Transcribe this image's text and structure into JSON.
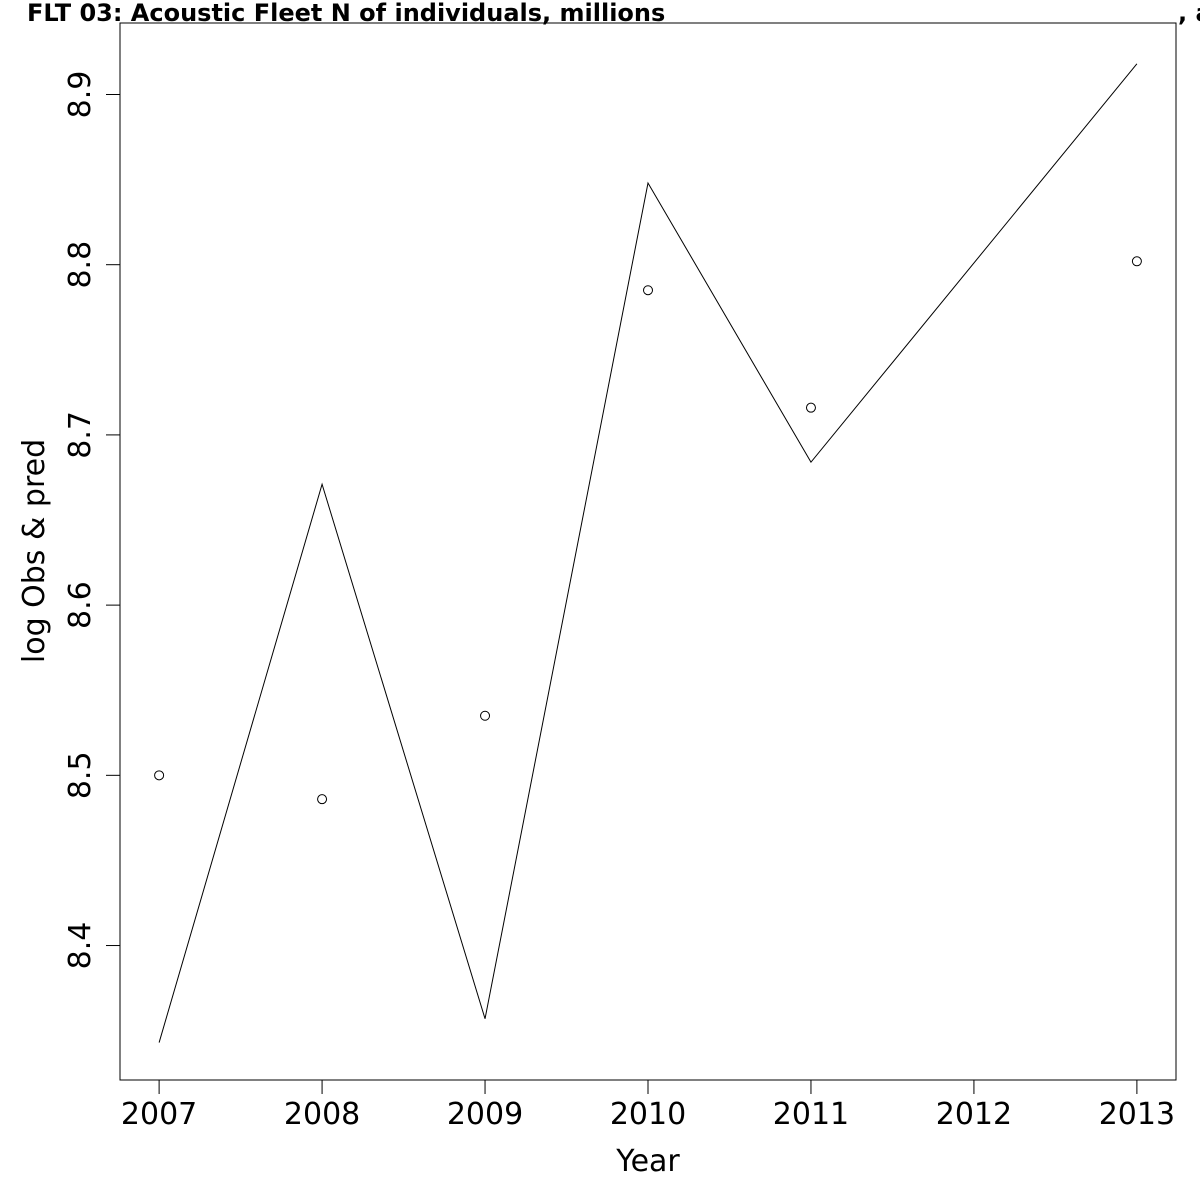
{
  "chart_data": {
    "type": "line",
    "title": "FLT 03: Acoustic Fleet   N of individuals, millions",
    "title_suffix": ", a",
    "xlabel": "Year",
    "ylabel": "log Obs & pred",
    "x_ticks": [
      2007,
      2008,
      2009,
      2010,
      2011,
      2012,
      2013
    ],
    "y_ticks": [
      8.4,
      8.5,
      8.6,
      8.7,
      8.8,
      8.9
    ],
    "xlim": [
      2006.76,
      2013.24
    ],
    "ylim": [
      8.321,
      8.942
    ],
    "grid": false,
    "series": [
      {
        "kind": "line",
        "x": [
          2007,
          2008,
          2009,
          2010,
          2011,
          2013
        ],
        "y": [
          8.343,
          8.671,
          8.357,
          8.848,
          8.684,
          8.918
        ]
      },
      {
        "kind": "points",
        "x": [
          2007,
          2008,
          2009,
          2010,
          2011,
          2013
        ],
        "y": [
          8.5,
          8.486,
          8.535,
          8.785,
          8.716,
          8.802
        ]
      }
    ]
  }
}
